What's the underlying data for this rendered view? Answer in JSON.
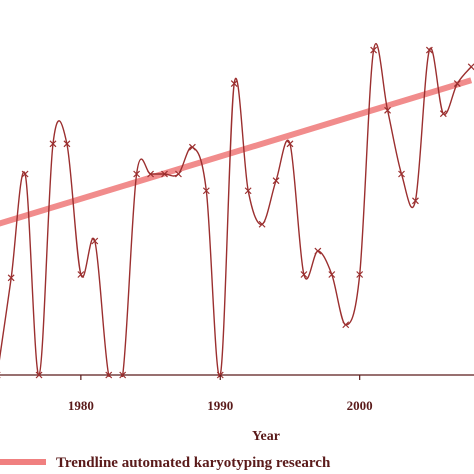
{
  "chart_data": {
    "type": "line",
    "xlabel": "Year",
    "ylabel": "",
    "title": "",
    "xlim": [
      1974.2,
      2008.2
    ],
    "ylim": [
      0,
      100
    ],
    "x_ticks": [
      1980,
      1990,
      2000
    ],
    "grid": false,
    "legend_position": "bottom",
    "series": [
      {
        "kind": "data",
        "color": "#9b2f2f",
        "x": [
          1974,
          1975,
          1976,
          1977,
          1978,
          1979,
          1980,
          1981,
          1982,
          1983,
          1984,
          1985,
          1986,
          1987,
          1988,
          1989,
          1990,
          1991,
          1992,
          1993,
          1994,
          1995,
          1996,
          1997,
          1998,
          1999,
          2000,
          2001,
          2002,
          2003,
          2004,
          2005,
          2006,
          2007,
          2008
        ],
        "y": [
          0,
          29,
          60,
          0,
          69,
          69,
          30,
          40,
          0,
          0,
          60,
          60,
          60,
          60,
          68,
          55,
          0,
          87,
          55,
          45,
          58,
          69,
          30,
          37,
          30,
          15,
          30,
          97,
          79,
          60,
          52,
          97,
          78,
          87,
          92
        ]
      },
      {
        "kind": "trend",
        "name": "Trendline automated karyotyping research",
        "color": "#f08080",
        "x": [
          1974,
          2008
        ],
        "y": [
          45,
          88
        ]
      }
    ]
  }
}
